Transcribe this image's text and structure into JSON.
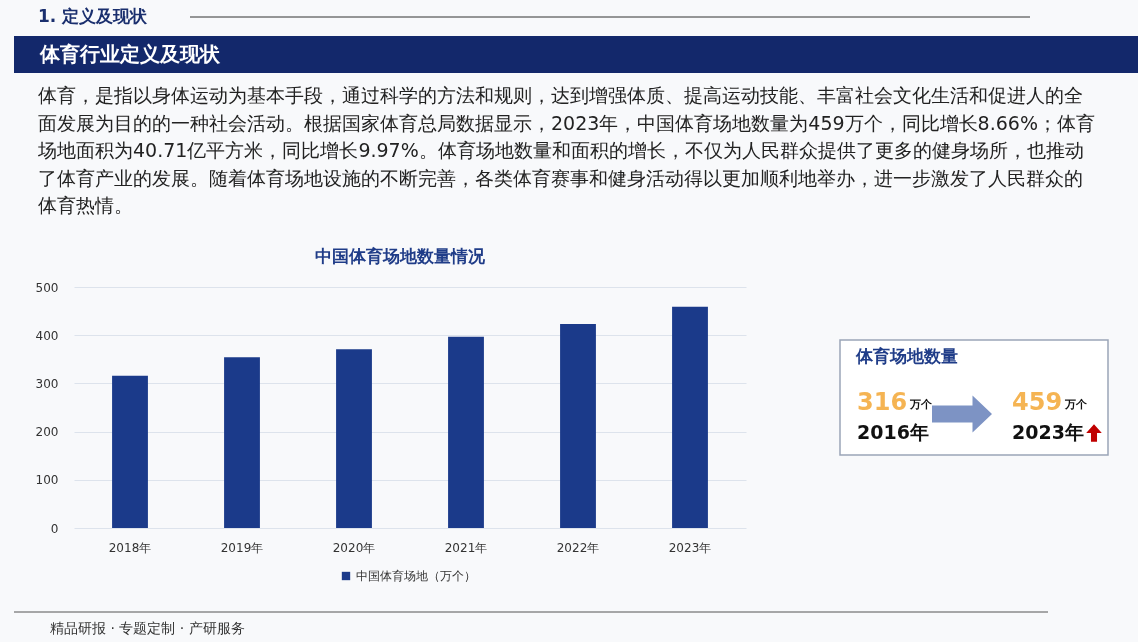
{
  "chart_data": [
    {
      "type": "bar",
      "title": "中国体育场地数量情况",
      "categories": [
        "2018年",
        "2019年",
        "2020年",
        "2021年",
        "2022年",
        "2023年"
      ],
      "series": [
        {
          "name": "中国体育场地（万个）",
          "color": "#1b3a8a",
          "values": [
            316,
            354,
            371,
            397,
            423,
            459
          ]
        }
      ],
      "ylim": [
        0,
        500
      ],
      "yticks": [
        0,
        100,
        200,
        300,
        400,
        500
      ],
      "grid": "y",
      "legend": "bottom",
      "annotations": [
        "1. 定义及现状",
        "体育行业定义及现状",
        "体育，是指以身体运动为基本手段，通过科学的方法和规则，达到增强体质、提高运动技能、丰富社会文化生活和促进人的全面发展为目的的一种社会活动。根据国家体育总局数据显示，2023年，中国体育场地数量为459万个，同比增长8.66%；体育场地面积为40.71亿平方米，同比增长9.97%。体育场地数量和面积的增长，不仅为人民群众提供了更多的健身场所，也推动了体育产业的发展。随着体育场地设施的不断完善，各类体育赛事和健身活动得以更加顺利地举办，进一步激发了人民群众的体育热情。",
        "精品研报 · 专题定制 · 产研服务"
      ]
    },
    {
      "type": "other",
      "title": "体育场地数量",
      "annotations": [
        "316",
        "万个",
        "2016年",
        "459",
        "万个",
        "2023年"
      ]
    }
  ]
}
